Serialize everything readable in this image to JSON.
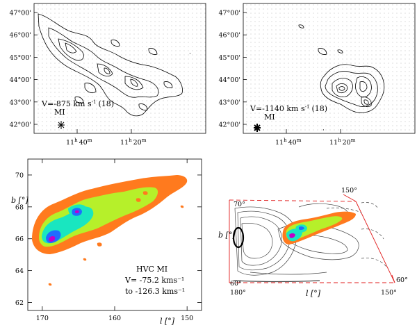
{
  "colors": {
    "outer": "#ff7a1e",
    "mid": "#b6f02a",
    "inner": "#19e6c0",
    "core": "#1f6cff",
    "peak": "#c000c8",
    "frame": "#e11c1c",
    "contour": "#000000"
  },
  "chart_data": [
    {
      "panel": "top-left",
      "type": "contour",
      "title": "",
      "ytick_labels": [
        "47°00'",
        "46°00'",
        "45°00'",
        "44°00'",
        "43°00'",
        "42°00'"
      ],
      "xtick_labels": [
        "11h40m",
        "11h20m"
      ],
      "xtick_parts": [
        {
          "h": "11",
          "hs": "h",
          "m": "40",
          "ms": "m"
        },
        {
          "h": "11",
          "hs": "h",
          "m": "20",
          "ms": "m"
        }
      ],
      "annotation": {
        "line1_prefix": "V=-875 km s",
        "line1_exp": "-1",
        "line1_suffix": "(18)",
        "line2": "MI"
      }
    },
    {
      "panel": "top-right",
      "type": "contour",
      "title": "",
      "ytick_labels": [
        "47°00'",
        "46°00'",
        "45°00'",
        "44°00'",
        "43°00'",
        "42°00'"
      ],
      "xtick_labels": [
        "11h40m",
        "11h20m"
      ],
      "xtick_parts": [
        {
          "h": "11",
          "hs": "h",
          "m": "40",
          "ms": "m"
        },
        {
          "h": "11",
          "hs": "h",
          "m": "20",
          "ms": "m"
        }
      ],
      "annotation": {
        "line1_prefix": "V=-1140 km s",
        "line1_exp": "-1",
        "line1_suffix": "(18)",
        "line2": "MI"
      }
    },
    {
      "panel": "bottom-left",
      "type": "filled-contour",
      "xlabel": "l [°]",
      "ylabel": "b [°]",
      "xlim": [
        172,
        148
      ],
      "ylim": [
        61.5,
        71
      ],
      "xticks": [
        170,
        160,
        150
      ],
      "yticks": [
        62,
        64,
        66,
        68,
        70
      ],
      "annotation": [
        "HVC MI",
        "V= -75.2 kms⁻¹",
        "to -126.3 kms⁻¹"
      ]
    },
    {
      "panel": "bottom-right",
      "type": "contour-overlay",
      "xlabel": "l [°]",
      "ylabel": "b [°]",
      "corner_labels": {
        "top_left": "70°",
        "top_right": "150°",
        "bottom_left": "60°",
        "bottom_left_x": "180°",
        "bottom_right": "150°",
        "right": "60°"
      }
    }
  ]
}
